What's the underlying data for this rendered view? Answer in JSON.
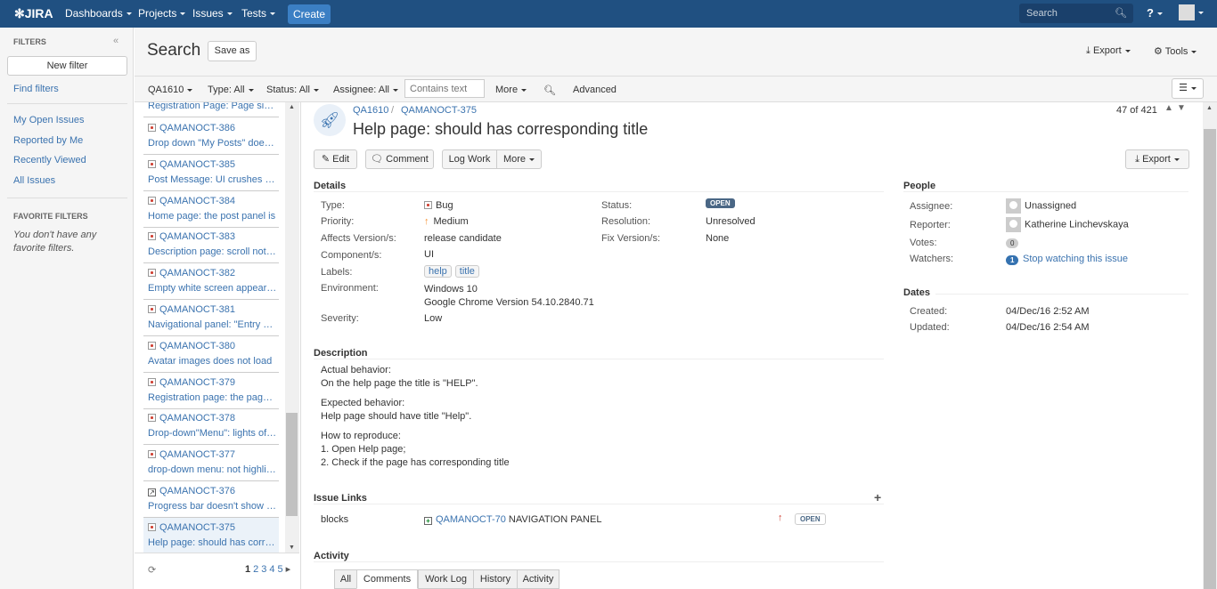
{
  "topbar": {
    "logo": "JIRA",
    "nav": [
      "Dashboards",
      "Projects",
      "Issues",
      "Tests"
    ],
    "create": "Create",
    "search_placeholder": "Search",
    "help_icon": "help-icon",
    "avatar_icon": "user-avatar",
    "accent": "#205081"
  },
  "sidebar": {
    "heading": "FILTERS",
    "collapse": "«",
    "new_filter": "New filter",
    "find_filters": "Find filters",
    "links": [
      "My Open Issues",
      "Reported by Me",
      "Recently Viewed",
      "All Issues"
    ],
    "favorite_heading": "FAVORITE FILTERS",
    "favorite_empty": "You don't have any favorite filters."
  },
  "search": {
    "title": "Search",
    "save_as": "Save as",
    "export": "Export",
    "tools": "Tools"
  },
  "filters": {
    "project": "QA1610",
    "type": "Type: All",
    "status": "Status: All",
    "assignee": "Assignee: All",
    "contains_placeholder": "Contains text",
    "more": "More",
    "advanced": "Advanced"
  },
  "list": {
    "partial_summary": "Registration Page: Page size...",
    "items": [
      {
        "key": "QAMANOCT-386",
        "summary": "Drop down \"My Posts\" does not work",
        "type": "bug"
      },
      {
        "key": "QAMANOCT-385",
        "summary": "Post Message: UI crushes when",
        "type": "bug"
      },
      {
        "key": "QAMANOCT-384",
        "summary": "Home page: the post panel is",
        "type": "bug"
      },
      {
        "key": "QAMANOCT-383",
        "summary": "Description page: scroll not available",
        "type": "bug"
      },
      {
        "key": "QAMANOCT-382",
        "summary": "Empty white screen appeared",
        "type": "bug"
      },
      {
        "key": "QAMANOCT-381",
        "summary": "Navigational panel: \"Entry point",
        "type": "bug"
      },
      {
        "key": "QAMANOCT-380",
        "summary": "Avatar images does not load",
        "type": "bug"
      },
      {
        "key": "QAMANOCT-379",
        "summary": "Registration page: the page is",
        "type": "bug"
      },
      {
        "key": "QAMANOCT-378",
        "summary": "Drop-down\"Menu\": lights of rows",
        "type": "bug"
      },
      {
        "key": "QAMANOCT-377",
        "summary": "drop-down menu: not highlighted",
        "type": "bug"
      },
      {
        "key": "QAMANOCT-376",
        "summary": "Progress bar doesn't show the",
        "type": "subtask"
      },
      {
        "key": "QAMANOCT-375",
        "summary": "Help page: should has corresponding title",
        "type": "bug",
        "selected": true
      }
    ],
    "pages": [
      "1",
      "2",
      "3",
      "4",
      "5"
    ],
    "current_page": "1"
  },
  "issue": {
    "project": "QA1610",
    "key": "QAMANOCT-375",
    "title": "Help page: should has corresponding title",
    "position": "47 of 421",
    "actions": {
      "edit": "Edit",
      "comment": "Comment",
      "log_work": "Log Work",
      "more": "More",
      "export": "Export"
    },
    "details_heading": "Details",
    "type_label": "Type:",
    "type": "Bug",
    "priority_label": "Priority:",
    "priority": "Medium",
    "affects_label": "Affects Version/s:",
    "affects": "release candidate",
    "component_label": "Component/s:",
    "component": "UI",
    "labels_label": "Labels:",
    "labels": [
      "help",
      "title"
    ],
    "environment_label": "Environment:",
    "environment": [
      "Windows 10",
      "Google Chrome Version 54.10.2840.71"
    ],
    "severity_label": "Severity:",
    "severity": "Low",
    "status_label": "Status:",
    "status": "OPEN",
    "resolution_label": "Resolution:",
    "resolution": "Unresolved",
    "fix_label": "Fix Version/s:",
    "fix": "None",
    "description_heading": "Description",
    "description": [
      [
        "Actual behavior:",
        "On the help page the title is \"HELP\"."
      ],
      [
        "Expected behavior:",
        "Help page should have title \"Help\"."
      ],
      [
        "How to reproduce:",
        "1. Open Help page;",
        "2. Check if the page has corresponding title"
      ]
    ],
    "links_heading": "Issue Links",
    "link": {
      "relation": "blocks",
      "key": "QAMANOCT-70",
      "summary": "NAVIGATION PANEL",
      "status": "OPEN"
    },
    "activity_heading": "Activity",
    "tabs": [
      "All",
      "Comments",
      "Work Log",
      "History",
      "Activity"
    ],
    "active_tab": "Comments",
    "people_heading": "People",
    "assignee_label": "Assignee:",
    "assignee": "Unassigned",
    "reporter_label": "Reporter:",
    "reporter": "Katherine Linchevskaya",
    "votes_label": "Votes:",
    "votes": "0",
    "watchers_label": "Watchers:",
    "watchers": "1",
    "watch_link": "Stop watching this issue",
    "dates_heading": "Dates",
    "created_label": "Created:",
    "created": "04/Dec/16 2:52 AM",
    "updated_label": "Updated:",
    "updated": "04/Dec/16 2:54 AM",
    "status_color": "#4a6785",
    "priority_color": "#f79232"
  }
}
